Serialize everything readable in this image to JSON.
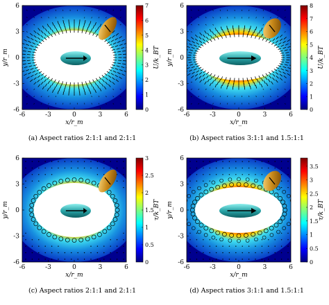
{
  "colors": {
    "field_low": "#00008f",
    "field_mid": "#1fb0e8",
    "field_high": "#ffd200",
    "field_peak": "#a00000",
    "particle_teal": "#2aa5a8",
    "particle_gold": "#c98a1a"
  },
  "colorbar_stops": [
    "#00007f",
    "#0000ff",
    "#007fff",
    "#00ffff",
    "#7fff7f",
    "#ffff00",
    "#ff7f00",
    "#ff0000",
    "#7f0000"
  ],
  "panels": [
    {
      "id": "a",
      "caption": "(a) Aspect ratios 2:1:1 and 2:1:1",
      "xlabel": "x/r_m",
      "ylabel": "y/r_m",
      "cb_label": "U/k_BT",
      "x_ticks": [
        "-6",
        "-3",
        "0",
        "3",
        "6"
      ],
      "y_ticks": [
        "6",
        "3",
        "0",
        "-3",
        "-6"
      ],
      "cb_ticks": [
        "7",
        "6",
        "5",
        "4",
        "3",
        "2",
        "1",
        "0"
      ],
      "cb_max": 7,
      "marker": "arrows",
      "hole_rx": 0.39,
      "hole_ry": 0.26
    },
    {
      "id": "b",
      "caption": "(b) Aspect ratios 3:1:1 and 1.5:1:1",
      "xlabel": "x/r_m",
      "ylabel": "y/r_m",
      "cb_label": "U/k_BT",
      "x_ticks": [
        "-6",
        "-3",
        "0",
        "3",
        "6"
      ],
      "y_ticks": [
        "6",
        "3",
        "0",
        "-3",
        "-6"
      ],
      "cb_ticks": [
        "8",
        "7",
        "6",
        "5",
        "4",
        "3",
        "2",
        "1",
        "0"
      ],
      "cb_max": 8,
      "marker": "arrows",
      "hole_rx": 0.42,
      "hole_ry": 0.22
    },
    {
      "id": "c",
      "caption": "(c) Aspect ratios 2:1:1 and 2:1:1",
      "xlabel": "x/r_m",
      "ylabel": "y/r_m",
      "cb_label": "τ/k_BT",
      "x_ticks": [
        "-6",
        "-3",
        "0",
        "3",
        "6"
      ],
      "y_ticks": [
        "6",
        "3",
        "0",
        "-3",
        "-6"
      ],
      "cb_ticks": [
        "3",
        "2.5",
        "2",
        "1.5",
        "1",
        "0.5",
        "0"
      ],
      "cb_max": 3,
      "marker": "circles",
      "hole_rx": 0.39,
      "hole_ry": 0.26
    },
    {
      "id": "d",
      "caption": "(d) Aspect ratios 3:1:1 and 1.5:1:1",
      "xlabel": "x/r_m",
      "ylabel": "y/r_m",
      "cb_label": "τ/k_BT",
      "x_ticks": [
        "-6",
        "-3",
        "0",
        "3",
        "6"
      ],
      "y_ticks": [
        "6",
        "3",
        "0",
        "-3",
        "-6"
      ],
      "cb_ticks": [
        "3.5",
        "3",
        "2.5",
        "2",
        "1.5",
        "1",
        "0.5",
        "0"
      ],
      "cb_max": 3.8,
      "marker": "circles",
      "hole_rx": 0.42,
      "hole_ry": 0.22
    }
  ]
}
